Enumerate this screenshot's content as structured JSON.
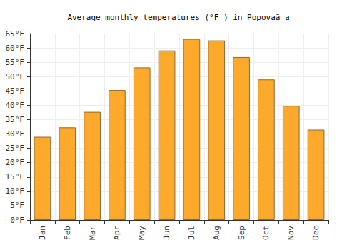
{
  "chart_data": {
    "type": "bar",
    "title": "Average monthly temperatures (°F ) in Popovaä a",
    "categories": [
      "Jan",
      "Feb",
      "Mar",
      "Apr",
      "May",
      "Jun",
      "Jul",
      "Aug",
      "Sep",
      "Oct",
      "Nov",
      "Dec"
    ],
    "values": [
      29,
      32.3,
      37.7,
      45.3,
      53.2,
      59.1,
      63.1,
      62.6,
      56.8,
      49,
      39.8,
      31.5
    ],
    "color": "#fca92c",
    "ylim": [
      0,
      65
    ],
    "yticks": [
      {
        "value": 0,
        "label": "0°F"
      },
      {
        "value": 5,
        "label": "5°F"
      },
      {
        "value": 10,
        "label": "10°F"
      },
      {
        "value": 15,
        "label": "15°F"
      },
      {
        "value": 20,
        "label": "20°F"
      },
      {
        "value": 25,
        "label": "25°F"
      },
      {
        "value": 30,
        "label": "30°F"
      },
      {
        "value": 35,
        "label": "35°F"
      },
      {
        "value": 40,
        "label": "40°F"
      },
      {
        "value": 45,
        "label": "45°F"
      },
      {
        "value": 50,
        "label": "50°F"
      },
      {
        "value": 55,
        "label": "55°F"
      },
      {
        "value": 60,
        "label": "60°F"
      },
      {
        "value": 65,
        "label": "65°F"
      }
    ],
    "grid": true
  }
}
